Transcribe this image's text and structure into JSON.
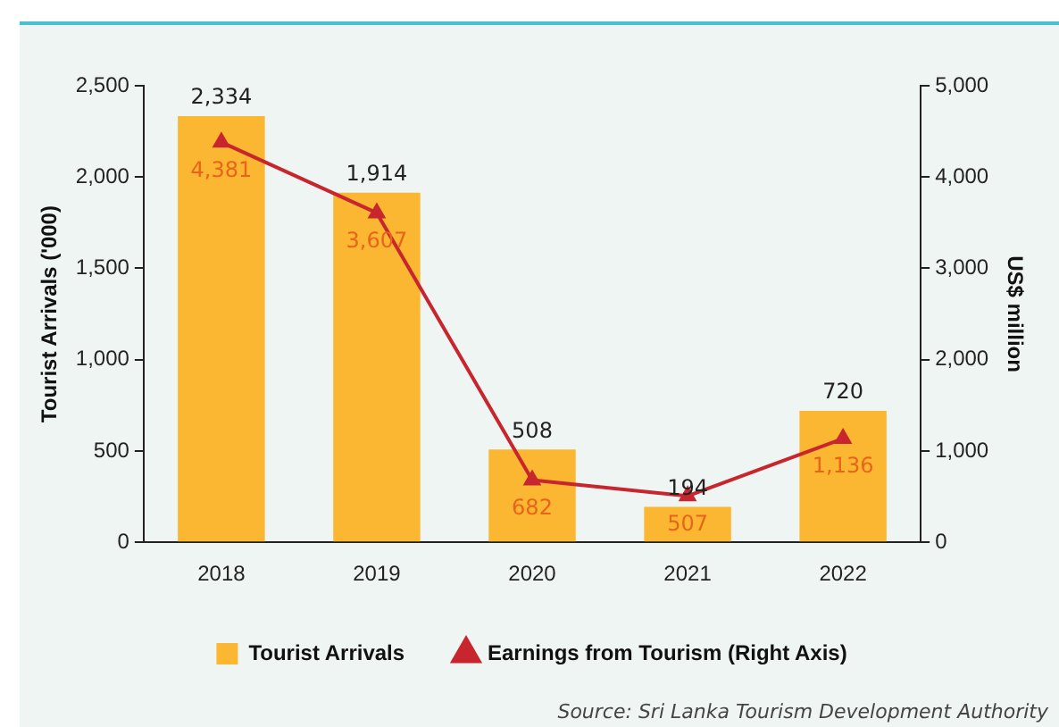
{
  "chart_data": {
    "type": "bar",
    "ylabel": "Tourist Arrivals ('000)",
    "y2label": "US$ million",
    "categories": [
      "2018",
      "2019",
      "2020",
      "2021",
      "2022"
    ],
    "series": [
      {
        "name": "Tourist Arrivals",
        "color": "#fbb731",
        "values": [
          2334,
          1914,
          508,
          194,
          720
        ],
        "value_labels": [
          "2,334",
          "1,914",
          "508",
          "194",
          "720"
        ]
      },
      {
        "name": "Earnings from Tourism (Right Axis)",
        "type": "line",
        "axis": "y2",
        "color": "#c8262e",
        "marker": "triangle",
        "values": [
          4381,
          3607,
          682,
          507,
          1136
        ],
        "value_labels": [
          "4,381",
          "3,607",
          "682",
          "507",
          "1,136"
        ]
      }
    ],
    "ylim": [
      0,
      2500
    ],
    "yticks": [
      0,
      500,
      {
        "value": 1000,
        "label": "1,000"
      },
      {
        "value": 1500,
        "label": "1,500"
      },
      {
        "value": 2000,
        "label": "2,000"
      },
      {
        "value": 2500,
        "label": "2,500"
      }
    ],
    "y2lim": [
      0,
      5000
    ],
    "y2ticks": [
      0,
      {
        "value": 1000,
        "label": "1,000"
      },
      {
        "value": 2000,
        "label": "2,000"
      },
      {
        "value": 3000,
        "label": "3,000"
      },
      {
        "value": 4000,
        "label": "4,000"
      },
      {
        "value": 5000,
        "label": "5,000"
      }
    ],
    "grid": false,
    "legend": "bottom",
    "annotations": [
      "Source: Sri Lanka Tourism Development Authority"
    ]
  }
}
